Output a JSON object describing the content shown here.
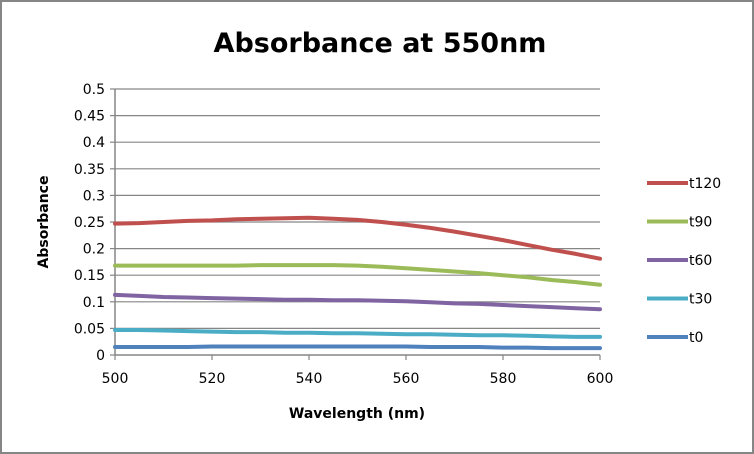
{
  "chart_data": {
    "type": "line",
    "title": "Absorbance at 550nm",
    "xlabel": "Wavelength (nm)",
    "ylabel": "Absorbance",
    "xlim": [
      500,
      600
    ],
    "ylim": [
      0,
      0.5
    ],
    "x_ticks": [
      "500",
      "520",
      "540",
      "560",
      "580",
      "600"
    ],
    "y_ticks": [
      "0",
      "0.05",
      "0.1",
      "0.15",
      "0.2",
      "0.25",
      "0.3",
      "0.35",
      "0.4",
      "0.45",
      "0.5"
    ],
    "grid": "horizontal",
    "legend_position": "right",
    "x": [
      500,
      505,
      510,
      515,
      520,
      525,
      530,
      535,
      540,
      545,
      550,
      555,
      560,
      565,
      570,
      575,
      580,
      585,
      590,
      595,
      600
    ],
    "series": [
      {
        "name": "t120",
        "color": "#C0504D",
        "values": [
          0.247,
          0.248,
          0.25,
          0.252,
          0.253,
          0.255,
          0.256,
          0.257,
          0.258,
          0.256,
          0.254,
          0.25,
          0.245,
          0.239,
          0.232,
          0.224,
          0.216,
          0.207,
          0.198,
          0.19,
          0.181
        ]
      },
      {
        "name": "t90",
        "color": "#9BBB59",
        "values": [
          0.168,
          0.168,
          0.168,
          0.168,
          0.168,
          0.168,
          0.169,
          0.169,
          0.169,
          0.169,
          0.168,
          0.166,
          0.163,
          0.16,
          0.157,
          0.154,
          0.15,
          0.146,
          0.141,
          0.137,
          0.132
        ]
      },
      {
        "name": "t60",
        "color": "#8064A2",
        "values": [
          0.113,
          0.111,
          0.109,
          0.108,
          0.107,
          0.106,
          0.105,
          0.104,
          0.104,
          0.103,
          0.103,
          0.102,
          0.101,
          0.099,
          0.097,
          0.096,
          0.094,
          0.092,
          0.09,
          0.088,
          0.086
        ]
      },
      {
        "name": "t30",
        "color": "#4BACC6",
        "values": [
          0.047,
          0.047,
          0.046,
          0.045,
          0.044,
          0.043,
          0.043,
          0.042,
          0.042,
          0.041,
          0.041,
          0.04,
          0.039,
          0.039,
          0.038,
          0.037,
          0.037,
          0.036,
          0.035,
          0.034,
          0.034
        ]
      },
      {
        "name": "t0",
        "color": "#4F81BD",
        "values": [
          0.015,
          0.015,
          0.015,
          0.015,
          0.016,
          0.016,
          0.016,
          0.016,
          0.016,
          0.016,
          0.016,
          0.016,
          0.016,
          0.015,
          0.015,
          0.015,
          0.014,
          0.014,
          0.013,
          0.013,
          0.013
        ]
      }
    ]
  }
}
